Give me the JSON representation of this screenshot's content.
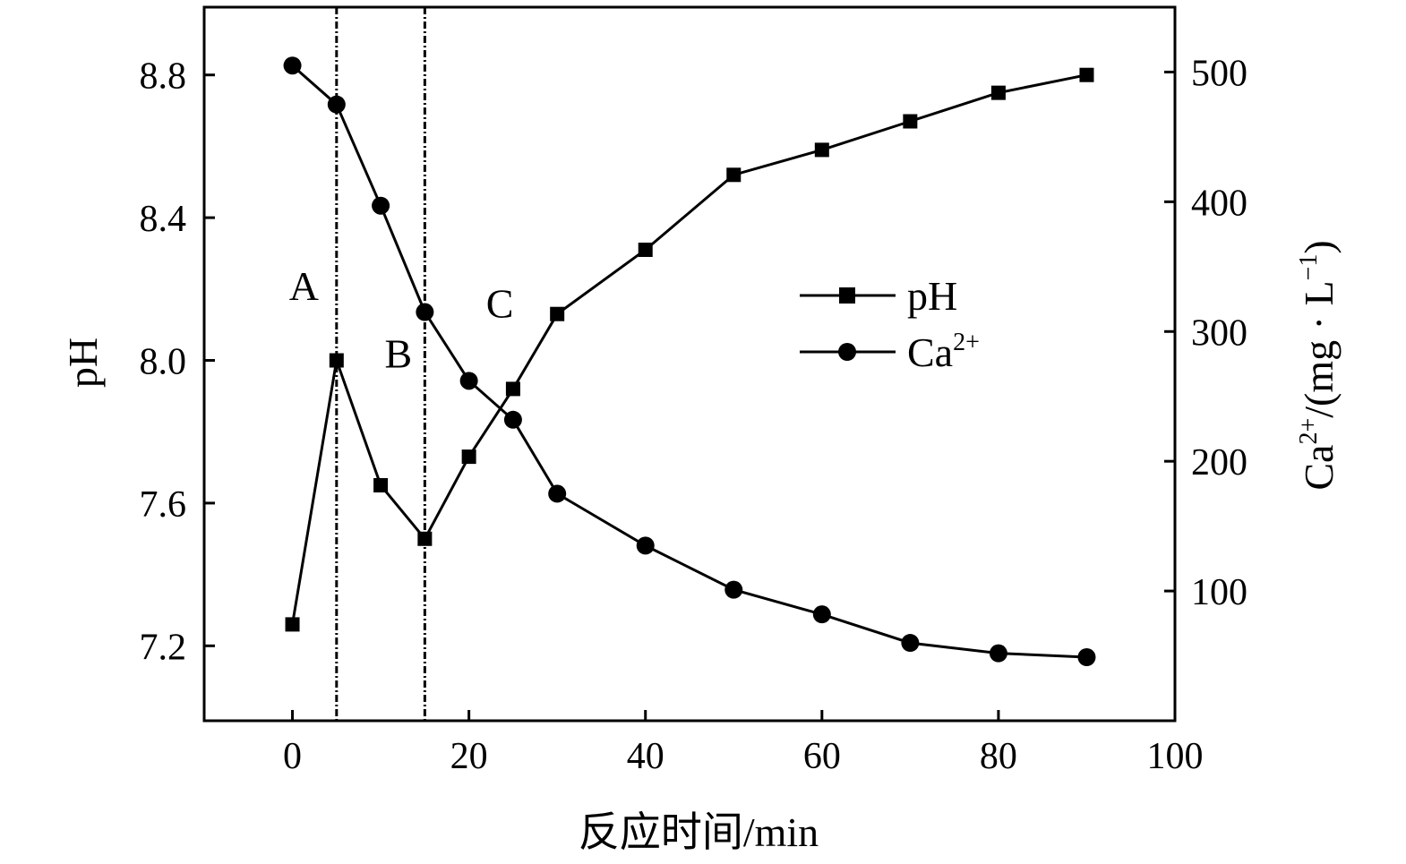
{
  "chart_data": {
    "type": "line",
    "xlabel": "反应时间/min",
    "xlim": [
      -10,
      100
    ],
    "xticks": [
      0,
      20,
      40,
      60,
      80,
      100
    ],
    "y_left": {
      "label": "pH",
      "lim": [
        6.99,
        8.99
      ],
      "ticks": [
        "7.2",
        "7.6",
        "8.0",
        "8.4",
        "8.8"
      ]
    },
    "y_right": {
      "label_base": "Ca",
      "label_sup": "2+",
      "label_rest": "/(mg · L",
      "label_sup2": "−1",
      "label_close": ")",
      "lim": [
        0,
        550
      ],
      "ticks": [
        100,
        200,
        300,
        400,
        500
      ]
    },
    "series": [
      {
        "name": "pH",
        "marker": "square",
        "axis": "left",
        "x": [
          0,
          5,
          10,
          15,
          20,
          25,
          30,
          40,
          50,
          60,
          70,
          80,
          90
        ],
        "y": [
          7.26,
          8.0,
          7.65,
          7.5,
          7.73,
          7.92,
          8.13,
          8.31,
          8.52,
          8.59,
          8.67,
          8.75,
          8.8
        ]
      },
      {
        "name_base": "Ca",
        "name_sup": "2+",
        "marker": "circle",
        "axis": "right",
        "x": [
          0,
          5,
          10,
          15,
          20,
          25,
          30,
          40,
          50,
          60,
          70,
          80,
          90
        ],
        "y": [
          505,
          475,
          397,
          315,
          262,
          232,
          175,
          135,
          101,
          82,
          60,
          52,
          49
        ]
      }
    ],
    "vlines": [
      5,
      15
    ],
    "regions": [
      {
        "label": "A",
        "x": 1.3,
        "y_pH": 8.17
      },
      {
        "label": "B",
        "x": 12,
        "y_pH": 7.98
      },
      {
        "label": "C",
        "x": 23.5,
        "y_pH": 8.12
      }
    ],
    "legend": "center-right",
    "grid": false
  }
}
